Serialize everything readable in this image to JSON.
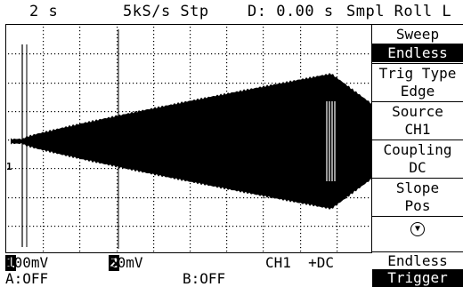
{
  "status_bar": {
    "time_base": "2 s",
    "sample_rate": "5kS/s Stp",
    "delay": "D: 0.00 s",
    "acquisition": "Smpl Roll L"
  },
  "menu": {
    "items": [
      {
        "label": "Sweep",
        "type": "header"
      },
      {
        "label": "Endless",
        "type": "value",
        "selected": true
      },
      {
        "label": "Trig Type",
        "type": "header"
      },
      {
        "label": "Edge",
        "type": "value"
      },
      {
        "label": "Source",
        "type": "header"
      },
      {
        "label": "CH1",
        "type": "value"
      },
      {
        "label": "Coupling",
        "type": "header"
      },
      {
        "label": "DC",
        "type": "value"
      },
      {
        "label": "Slope",
        "type": "header"
      },
      {
        "label": "Pos",
        "type": "value"
      }
    ],
    "more_icon": "circle-down-arrow-icon",
    "footer_mode": "Endless",
    "footer_title": "Trigger"
  },
  "channels": {
    "ch1_marker": "1",
    "ch1_badge": "1",
    "ch1_scale": "100mV",
    "ch2_marker": "2",
    "ch2_badge": "2",
    "ch2_scale": "50mV",
    "ch1_coupling": "CH1  +DC"
  },
  "math": {
    "a_status": "A:OFF",
    "b_status": "B:OFF"
  },
  "colors": {
    "trace": "#000000",
    "grid": "#000000",
    "background": "#ffffff"
  }
}
